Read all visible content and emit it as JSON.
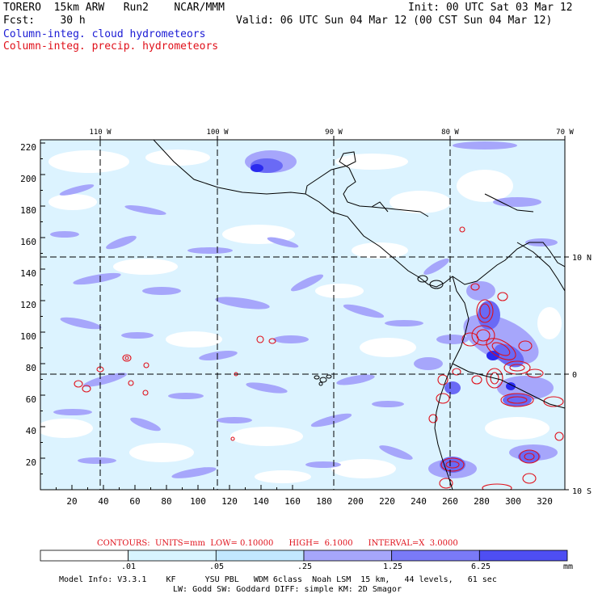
{
  "header": {
    "model": "TORERO  15km ARW   Run2    NCAR/MMM",
    "forecast": "Fcst:    30 h",
    "init": "Init: 00 UTC Sat 03 Mar 12",
    "valid": "Valid: 06 UTC Sun 04 Mar 12 (00 CST Sun 04 Mar 12)",
    "field1": "Column-integ. cloud hydrometeors",
    "field2": "Column-integ. precip. hydrometeors"
  },
  "axes": {
    "top_lon_labels": [
      "110 W",
      "100 W",
      "90 W",
      "80 W",
      "70 W"
    ],
    "right_lat_labels": [
      "10 N",
      "0",
      "10 S"
    ],
    "y_ticks": [
      "220",
      "200",
      "180",
      "160",
      "140",
      "120",
      "100",
      "80",
      "60",
      "40",
      "20"
    ],
    "x_ticks": [
      "20",
      "40",
      "60",
      "80",
      "100",
      "120",
      "140",
      "160",
      "180",
      "200",
      "220",
      "240",
      "260",
      "280",
      "300",
      "320"
    ]
  },
  "contours": {
    "info": "CONTOURS:  UNITS=mm  LOW= 0.10000      HIGH=  6.1000      INTERVAL=X  3.0000"
  },
  "colorbar": {
    "labels": [
      ".01",
      ".05",
      ".25",
      "1.25",
      "6.25"
    ],
    "units": "mm",
    "colors": [
      "#ffffff",
      "#d8f4ff",
      "#c2e8ff",
      "#a6a6fb",
      "#7a7af8",
      "#4e4ef3",
      "#2020ec"
    ]
  },
  "footer": {
    "line1": "Model Info: V3.3.1    KF      YSU PBL   WDM 6class  Noah LSM  15 km,   44 levels,   61 sec",
    "line2": "LW: Godd SW: Goddard DIFF: simple KM: 2D Smagor"
  }
}
